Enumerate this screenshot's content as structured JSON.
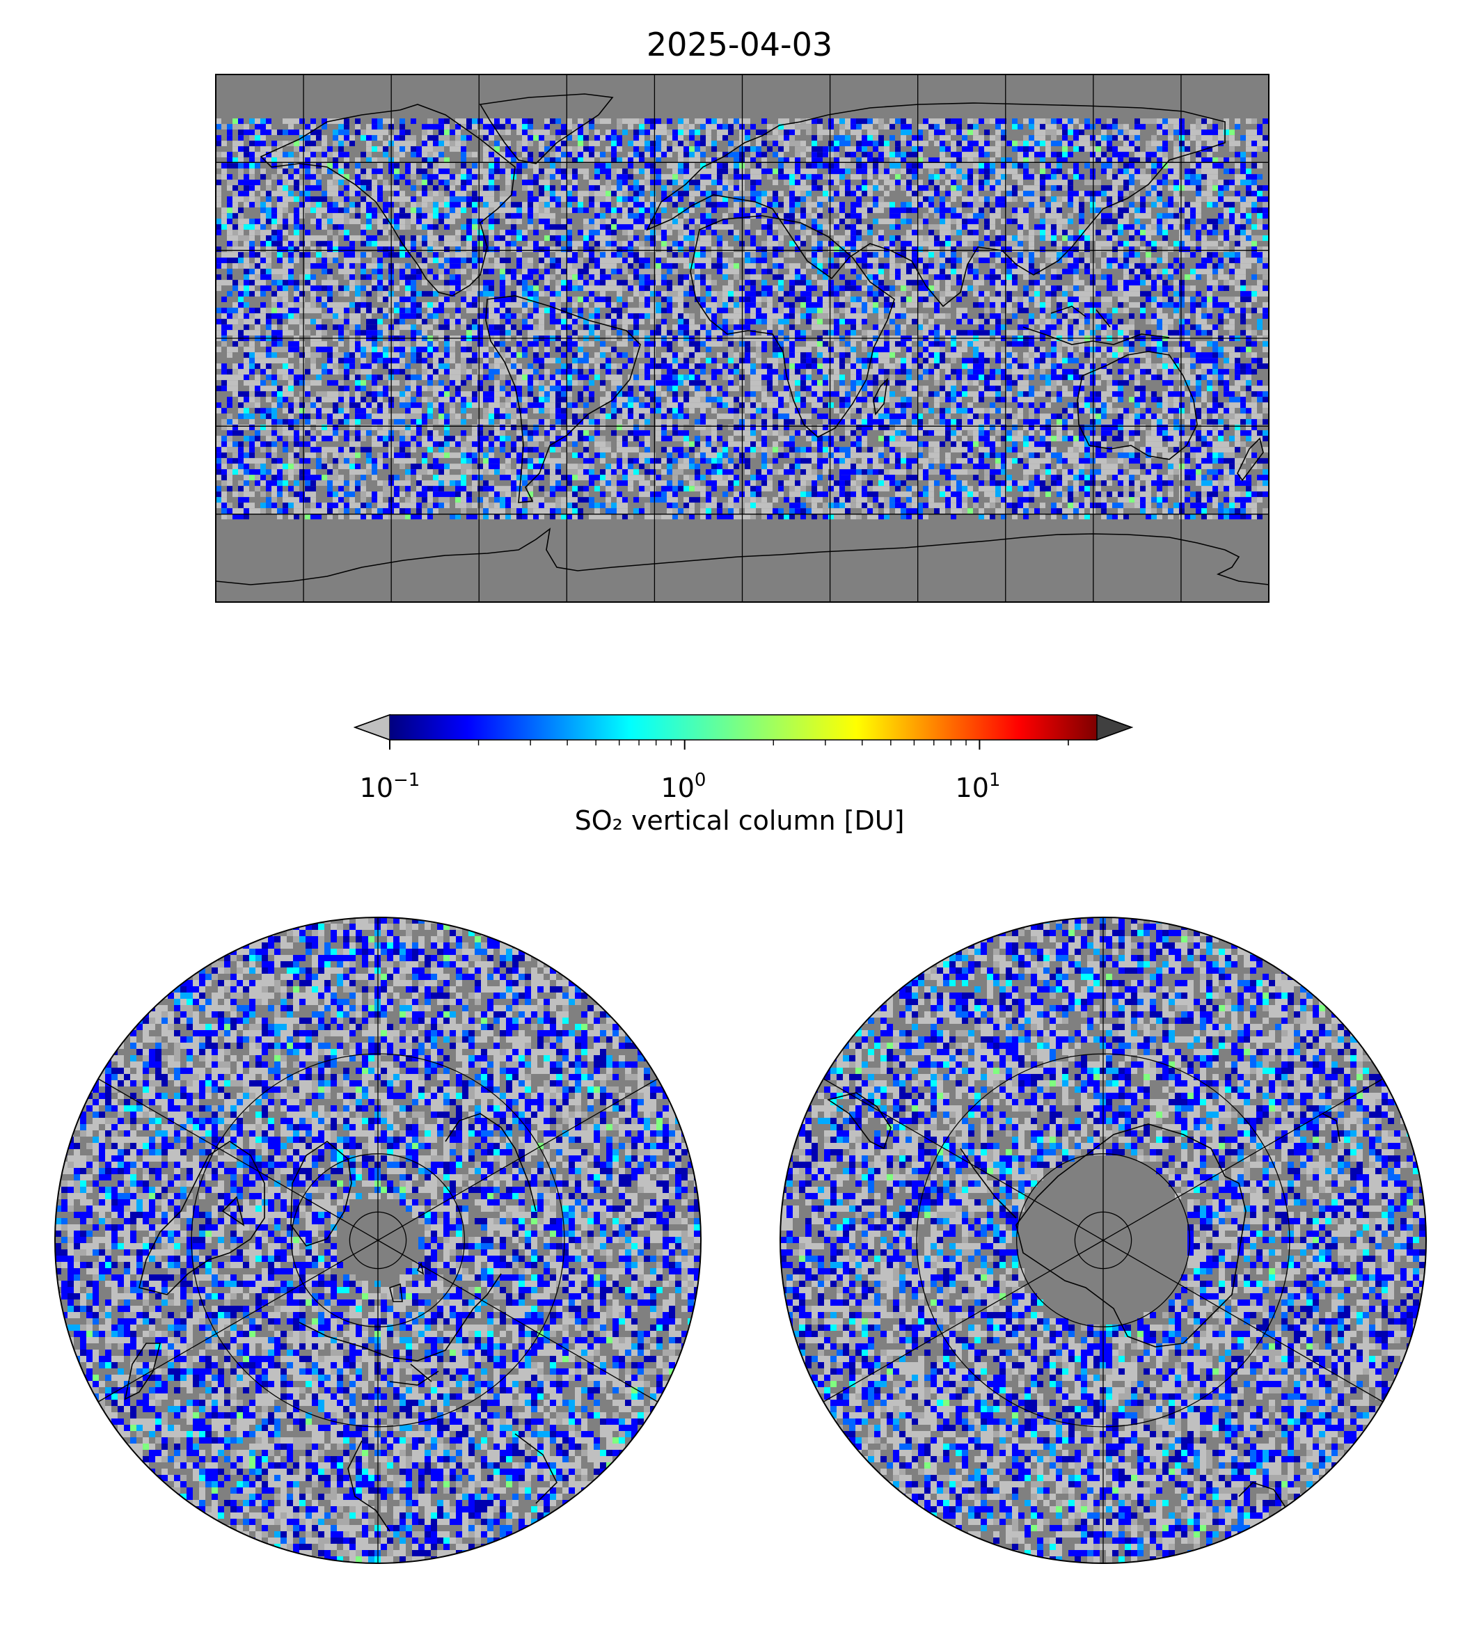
{
  "figure": {
    "title": "2025-04-03",
    "projections": [
      "plate-carree",
      "north-polar-stereographic",
      "south-polar-stereographic"
    ],
    "no_data_color": "#808080",
    "below_range_color": "#c0c0c0",
    "above_range_color": "#404040"
  },
  "colorbar": {
    "label": "SO₂ vertical column [DU]",
    "colormap": "jet",
    "scale": "log",
    "range": [
      0.1,
      25
    ],
    "extend": "both",
    "ticks": [
      {
        "base": "10",
        "exp": "−1",
        "value": 0.1
      },
      {
        "base": "10",
        "exp": "0",
        "value": 1
      },
      {
        "base": "10",
        "exp": "1",
        "value": 10
      }
    ]
  },
  "global_map": {
    "lon_range": [
      -180,
      180
    ],
    "lat_range": [
      -90,
      90
    ],
    "data_lat_range": [
      -60,
      75
    ],
    "gridline_lons": [
      -150,
      -120,
      -90,
      -60,
      -30,
      0,
      30,
      60,
      90,
      120,
      150
    ],
    "gridline_lats": [
      -60,
      -30,
      0,
      30,
      60
    ]
  },
  "north_polar_map": {
    "pole": "north",
    "circle_lats": [
      30,
      60
    ],
    "no_data_cap_lat": 75
  },
  "south_polar_map": {
    "pole": "south",
    "circle_lats": [
      -60,
      -30
    ],
    "no_data_cap_lat": -60
  }
}
